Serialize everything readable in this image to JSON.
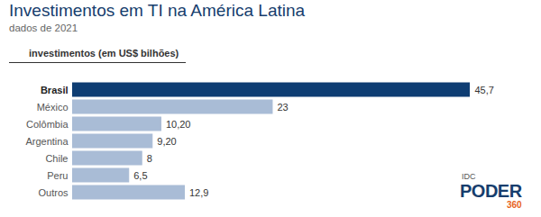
{
  "chart_data": {
    "type": "bar",
    "orientation": "horizontal",
    "title": "Investimentos em TI na América Latina",
    "subtitle": "dados de 2021",
    "annotations": [
      "investimentos (em US$ bilhões)",
      "IDC",
      "PODER",
      "360"
    ],
    "categories": [
      "Brasil",
      "México",
      "Colômbia",
      "Argentina",
      "Chile",
      "Peru",
      "Outros"
    ],
    "values": [
      45.7,
      23,
      10.2,
      9.2,
      8,
      6.5,
      12.9
    ],
    "value_labels": [
      "45,7",
      "23",
      "10,20",
      "9,20",
      "8",
      "6,5",
      "12,9"
    ],
    "colors": [
      "#0e3d73",
      "#a9bcd6",
      "#a9bcd6",
      "#a9bcd6",
      "#a9bcd6",
      "#a9bcd6",
      "#a9bcd6"
    ],
    "data_labels": true,
    "tick_labels": "y",
    "grid": false
  }
}
